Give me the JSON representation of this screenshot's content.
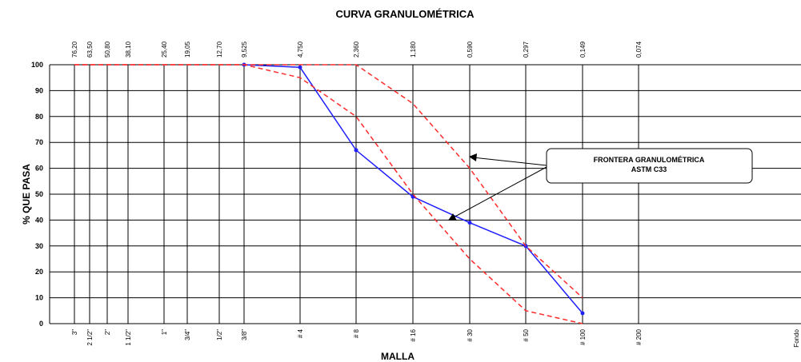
{
  "chart_data": {
    "type": "line",
    "title": "CURVA GRANULOMÉTRICA",
    "xlabel": "MALLA",
    "ylabel": "% QUE PASA",
    "ylim": [
      0,
      100
    ],
    "yticks": [
      0,
      10,
      20,
      30,
      40,
      50,
      60,
      70,
      80,
      90,
      100
    ],
    "sieve_sizes_mm": [
      "76,20",
      "63,50",
      "50,80",
      "38,10",
      "25,40",
      "19,05",
      "12,70",
      "9,525",
      "4,750",
      "2,360",
      "1,180",
      "0,590",
      "0,297",
      "0,149",
      "0,074"
    ],
    "sieve_names": [
      "3\"",
      "2 1/2\"",
      "2\"",
      "1 1/2\"",
      "1\"",
      "3/4\"",
      "1/2\"",
      "3/8\"",
      "# 4",
      "# 8",
      "# 16",
      "# 30",
      "# 50",
      "# 100",
      "# 200"
    ],
    "right_edge_label": "Fondo",
    "grid": true,
    "series": [
      {
        "color": "#1f1fff",
        "style": "solid",
        "markers": true,
        "x": [
          "9,525",
          "4,750",
          "2,360",
          "1,180",
          "0,590",
          "0,297",
          "0,149"
        ],
        "y": [
          100,
          99,
          67,
          49,
          39,
          30,
          4
        ]
      },
      {
        "color": "#ff2a2a",
        "style": "dashed",
        "markers": false,
        "x": [
          "76,20",
          "9,525",
          "4,750",
          "2,360",
          "1,180",
          "0,590",
          "0,297",
          "0,149"
        ],
        "y": [
          100,
          100,
          100,
          100,
          85,
          60,
          30,
          10
        ]
      },
      {
        "color": "#ff2a2a",
        "style": "dashed",
        "markers": false,
        "x": [
          "76,20",
          "9,525",
          "4,750",
          "2,360",
          "1,180",
          "0,590",
          "0,297",
          "0,149"
        ],
        "y": [
          100,
          100,
          95,
          80,
          50,
          25,
          5,
          0
        ]
      }
    ],
    "annotation": {
      "line1": "FRONTERA GRANULOMÉTRICA",
      "line2": "ASTM C33"
    }
  }
}
